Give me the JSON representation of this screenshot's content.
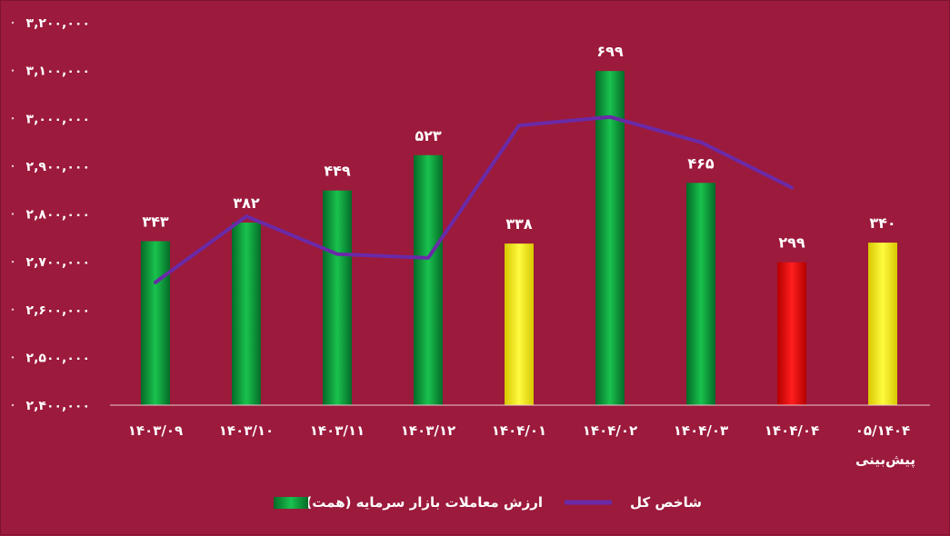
{
  "chart_data": {
    "type": "bar",
    "categories": [
      "۱۴۰۳/۰۹",
      "۱۴۰۳/۱۰",
      "۱۴۰۳/۱۱",
      "۱۴۰۳/۱۲",
      "۱۴۰۴/۰۱",
      "۱۴۰۴/۰۲",
      "۱۴۰۴/۰۳",
      "۱۴۰۴/۰۴",
      "۰۵/۱۴۰۴"
    ],
    "forecast_note": "پیش‌بینی",
    "y_ticks": [
      "۲,۴۰۰,۰۰۰",
      "۲,۵۰۰,۰۰۰",
      "۲,۶۰۰,۰۰۰",
      "۲,۷۰۰,۰۰۰",
      "۲,۸۰۰,۰۰۰",
      "۲,۹۰۰,۰۰۰",
      "۳,۰۰۰,۰۰۰",
      "۳,۱۰۰,۰۰۰",
      "۳,۲۰۰,۰۰۰"
    ],
    "ylim": [
      2400000,
      3200000
    ],
    "series": [
      {
        "name": "ارزش معاملات بازار سرمایه (همت)",
        "kind": "bar",
        "values": [
          343,
          382,
          449,
          523,
          338,
          699,
          465,
          299,
          340
        ],
        "labels": [
          "۳۴۳",
          "۳۸۲",
          "۴۴۹",
          "۵۲۳",
          "۳۳۸",
          "۶۹۹",
          "۴۶۵",
          "۲۹۹",
          "۳۴۰"
        ],
        "bar_colors": [
          "green",
          "green",
          "green",
          "green",
          "yellow",
          "green",
          "green",
          "red",
          "yellow"
        ]
      },
      {
        "name": "شاخص کل",
        "kind": "line",
        "values": [
          2657000,
          2795000,
          2716000,
          2708000,
          2985000,
          3003000,
          2950000,
          2855000,
          null
        ]
      }
    ],
    "grid": false,
    "legend_position": "bottom",
    "colors": {
      "background": "#9c1a3c",
      "green": "#0b9a3c",
      "yellow": "#fff200",
      "red": "#ee0000",
      "line": "#6a2aa8"
    }
  }
}
